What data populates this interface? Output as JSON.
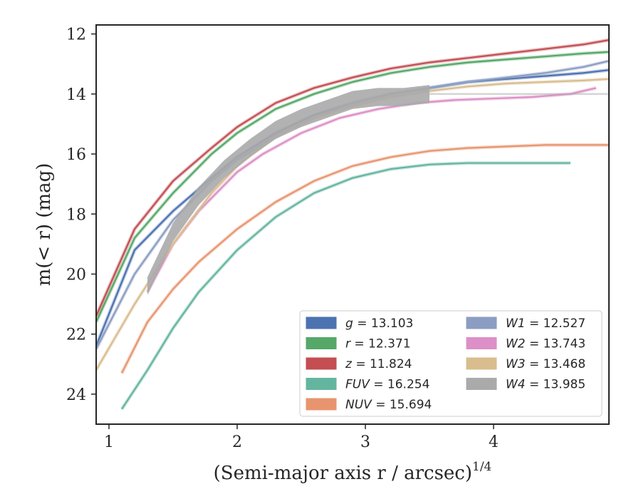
{
  "chart_data": {
    "type": "line",
    "xlabel": "(Semi-major axis r / arcsec)",
    "xlabel_exponent": "1/4",
    "ylabel": "m(< r) (mag)",
    "xlim": [
      0.9,
      4.9
    ],
    "ylim": [
      25.0,
      11.7
    ],
    "y_inverted": true,
    "x_ticks": [
      1,
      2,
      3,
      4
    ],
    "y_ticks": [
      12,
      14,
      16,
      18,
      20,
      22,
      24
    ],
    "grid": false,
    "legend_position": "lower-right",
    "series": [
      {
        "name": "g",
        "total": "13.103",
        "color": "#4c72b0",
        "x": [
          0.9,
          1.2,
          1.5,
          1.8,
          2.0,
          2.3,
          2.6,
          2.9,
          3.2,
          3.5,
          3.8,
          4.1,
          4.4,
          4.7,
          4.9
        ],
        "y": [
          22.4,
          19.2,
          17.9,
          16.8,
          16.1,
          15.3,
          14.7,
          14.3,
          14.0,
          13.8,
          13.6,
          13.5,
          13.4,
          13.3,
          13.2
        ]
      },
      {
        "name": "r",
        "total": "12.371",
        "color": "#55a868",
        "x": [
          0.9,
          1.2,
          1.5,
          1.8,
          2.0,
          2.3,
          2.6,
          2.9,
          3.2,
          3.5,
          3.8,
          4.1,
          4.4,
          4.7,
          4.9
        ],
        "y": [
          21.6,
          18.8,
          17.3,
          16.0,
          15.3,
          14.5,
          14.0,
          13.6,
          13.3,
          13.1,
          12.95,
          12.85,
          12.75,
          12.65,
          12.6
        ]
      },
      {
        "name": "z",
        "total": "11.824",
        "color": "#c44e52",
        "x": [
          0.9,
          1.2,
          1.5,
          1.8,
          2.0,
          2.3,
          2.6,
          2.9,
          3.2,
          3.5,
          3.8,
          4.1,
          4.4,
          4.7,
          4.9
        ],
        "y": [
          21.4,
          18.5,
          16.9,
          15.8,
          15.1,
          14.3,
          13.8,
          13.45,
          13.15,
          12.95,
          12.8,
          12.65,
          12.5,
          12.35,
          12.2
        ]
      },
      {
        "name": "FUV",
        "total": "16.254",
        "color": "#64b5a0",
        "x": [
          1.1,
          1.3,
          1.5,
          1.7,
          2.0,
          2.3,
          2.6,
          2.9,
          3.2,
          3.5,
          3.8,
          4.1,
          4.4,
          4.6
        ],
        "y": [
          24.5,
          23.2,
          21.8,
          20.6,
          19.2,
          18.1,
          17.3,
          16.8,
          16.5,
          16.35,
          16.3,
          16.3,
          16.3,
          16.3
        ]
      },
      {
        "name": "NUV",
        "total": "15.694",
        "color": "#e8956f",
        "x": [
          1.1,
          1.3,
          1.5,
          1.7,
          2.0,
          2.3,
          2.6,
          2.9,
          3.2,
          3.5,
          3.8,
          4.1,
          4.4,
          4.7,
          4.9
        ],
        "y": [
          23.3,
          21.6,
          20.5,
          19.6,
          18.5,
          17.6,
          16.9,
          16.4,
          16.1,
          15.9,
          15.8,
          15.75,
          15.7,
          15.7,
          15.7
        ]
      },
      {
        "name": "W1",
        "total": "12.527",
        "color": "#8b9dc3",
        "x": [
          0.9,
          1.2,
          1.5,
          1.8,
          2.0,
          2.3,
          2.6,
          2.9,
          3.2,
          3.5,
          3.8,
          4.1,
          4.4,
          4.7,
          4.9
        ],
        "y": [
          22.5,
          20.0,
          18.2,
          16.9,
          16.2,
          15.4,
          14.8,
          14.3,
          14.0,
          13.8,
          13.6,
          13.45,
          13.3,
          13.1,
          12.9
        ]
      },
      {
        "name": "W2",
        "total": "13.743",
        "color": "#dd8fc7",
        "x": [
          1.3,
          1.5,
          1.7,
          2.0,
          2.2,
          2.5,
          2.8,
          3.1,
          3.4,
          3.7,
          4.0,
          4.3,
          4.6,
          4.8
        ],
        "y": [
          20.6,
          19.0,
          17.9,
          16.6,
          16.0,
          15.3,
          14.8,
          14.5,
          14.3,
          14.2,
          14.15,
          14.1,
          14.0,
          13.8
        ]
      },
      {
        "name": "W3",
        "total": "13.468",
        "color": "#d9bd8f",
        "x": [
          0.9,
          1.2,
          1.5,
          1.8,
          2.0,
          2.3,
          2.6,
          2.9,
          3.2,
          3.5,
          3.8,
          4.1,
          4.4,
          4.7,
          4.9
        ],
        "y": [
          23.2,
          21.0,
          19.0,
          17.3,
          16.4,
          15.4,
          14.8,
          14.4,
          14.1,
          13.9,
          13.75,
          13.65,
          13.6,
          13.55,
          13.5
        ]
      },
      {
        "name": "W4",
        "total": "13.985",
        "color": "#aaaaaa",
        "x": [
          1.3,
          1.5,
          1.7,
          1.9,
          2.1,
          2.3,
          2.5,
          2.7,
          2.9,
          3.1,
          3.3,
          3.5
        ],
        "y": [
          20.4,
          18.6,
          17.4,
          16.5,
          15.8,
          15.2,
          14.8,
          14.5,
          14.2,
          14.1,
          14.1,
          14.0
        ],
        "band_halfwidth": 0.3
      }
    ]
  }
}
